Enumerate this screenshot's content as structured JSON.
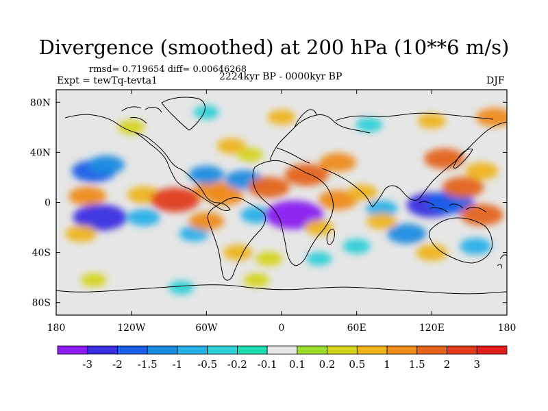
{
  "chart_data": {
    "type": "heatmap",
    "title": "Divergence (smoothed) at 200 hPa (10**6 m/s)",
    "stats_label": "rmsd= 0.719654 diff= 0.00646268",
    "experiment_label": "Expt = tewTq-tevta1",
    "period_label": "2224kyr BP - 0000kyr BP",
    "season_label": "DJF",
    "x_ticks": [
      {
        "value": -180,
        "label": "180"
      },
      {
        "value": -120,
        "label": "120W"
      },
      {
        "value": -60,
        "label": "60W"
      },
      {
        "value": 0,
        "label": "0"
      },
      {
        "value": 60,
        "label": "60E"
      },
      {
        "value": 120,
        "label": "120E"
      },
      {
        "value": 180,
        "label": "180"
      }
    ],
    "y_ticks": [
      {
        "value": 80,
        "label": "80N"
      },
      {
        "value": 40,
        "label": "40N"
      },
      {
        "value": 0,
        "label": "0"
      },
      {
        "value": -40,
        "label": "40S"
      },
      {
        "value": -80,
        "label": "80S"
      }
    ],
    "xlim": [
      -180,
      180
    ],
    "ylim": [
      -90,
      90
    ],
    "colorbar": {
      "levels": [
        "-3",
        "-2",
        "-1.5",
        "-1",
        "-0.5",
        "-0.2",
        "-0.1",
        "0.1",
        "0.2",
        "0.5",
        "1",
        "1.5",
        "2",
        "3"
      ],
      "colors": [
        "#8a1cf0",
        "#3a30e0",
        "#1c5ee8",
        "#1c8ce0",
        "#28b0e8",
        "#30d0d8",
        "#20dcb0",
        "#e6e6e6",
        "#9cdc2c",
        "#d4d41c",
        "#eeb41c",
        "#ee8c1c",
        "#e4641c",
        "#e03c1c",
        "#e41c1c"
      ]
    },
    "anomaly_regions": [
      {
        "lon": -150,
        "lat": 25,
        "value": -1.8
      },
      {
        "lon": -140,
        "lat": 30,
        "value": -1.2
      },
      {
        "lon": -155,
        "lat": 5,
        "value": 1.3
      },
      {
        "lon": -110,
        "lat": 6,
        "value": 0.9
      },
      {
        "lon": -85,
        "lat": 2,
        "value": 2.2
      },
      {
        "lon": -145,
        "lat": -12,
        "value": -2.6
      },
      {
        "lon": -110,
        "lat": -12,
        "value": -0.9
      },
      {
        "lon": -160,
        "lat": -25,
        "value": 0.8
      },
      {
        "lon": -70,
        "lat": -25,
        "value": -0.6
      },
      {
        "lon": -60,
        "lat": -15,
        "value": 1.1
      },
      {
        "lon": -55,
        "lat": 10,
        "value": 1.3
      },
      {
        "lon": -60,
        "lat": 22,
        "value": -1.1
      },
      {
        "lon": -30,
        "lat": 18,
        "value": -1.3
      },
      {
        "lon": -40,
        "lat": 45,
        "value": 0.6
      },
      {
        "lon": -25,
        "lat": 38,
        "value": 0.3
      },
      {
        "lon": -45,
        "lat": 5,
        "value": 1.2
      },
      {
        "lon": -10,
        "lat": 12,
        "value": 1.6
      },
      {
        "lon": 20,
        "lat": 22,
        "value": 1.8
      },
      {
        "lon": -20,
        "lat": -10,
        "value": -0.8
      },
      {
        "lon": 10,
        "lat": -10,
        "value": -3.1
      },
      {
        "lon": 45,
        "lat": 2,
        "value": 1.4
      },
      {
        "lon": 65,
        "lat": 8,
        "value": 0.6
      },
      {
        "lon": 45,
        "lat": 32,
        "value": 1.2
      },
      {
        "lon": 60,
        "lat": -35,
        "value": -0.5
      },
      {
        "lon": 30,
        "lat": -20,
        "value": 0.6
      },
      {
        "lon": 80,
        "lat": -5,
        "value": -0.8
      },
      {
        "lon": 80,
        "lat": -15,
        "value": 0.7
      },
      {
        "lon": 120,
        "lat": -2,
        "value": -2.3
      },
      {
        "lon": 135,
        "lat": 0,
        "value": -2.0
      },
      {
        "lon": 145,
        "lat": 12,
        "value": 1.6
      },
      {
        "lon": 130,
        "lat": 35,
        "value": 1.5
      },
      {
        "lon": 160,
        "lat": 25,
        "value": 0.9
      },
      {
        "lon": 160,
        "lat": -10,
        "value": 1.7
      },
      {
        "lon": 120,
        "lat": -40,
        "value": 0.8
      },
      {
        "lon": 100,
        "lat": -25,
        "value": -1.4
      },
      {
        "lon": 155,
        "lat": -35,
        "value": -0.8
      },
      {
        "lon": -35,
        "lat": -40,
        "value": 0.6
      },
      {
        "lon": -10,
        "lat": -45,
        "value": 0.4
      },
      {
        "lon": 30,
        "lat": -45,
        "value": -0.3
      },
      {
        "lon": -120,
        "lat": 60,
        "value": 0.4
      },
      {
        "lon": -60,
        "lat": 72,
        "value": -0.3
      },
      {
        "lon": 0,
        "lat": 68,
        "value": 0.5
      },
      {
        "lon": 70,
        "lat": 62,
        "value": -0.4
      },
      {
        "lon": 120,
        "lat": 65,
        "value": 0.5
      },
      {
        "lon": 170,
        "lat": 68,
        "value": 1.2
      },
      {
        "lon": -150,
        "lat": -62,
        "value": 0.3
      },
      {
        "lon": -20,
        "lat": -62,
        "value": 0.3
      },
      {
        "lon": -80,
        "lat": -68,
        "value": -0.3
      }
    ]
  }
}
